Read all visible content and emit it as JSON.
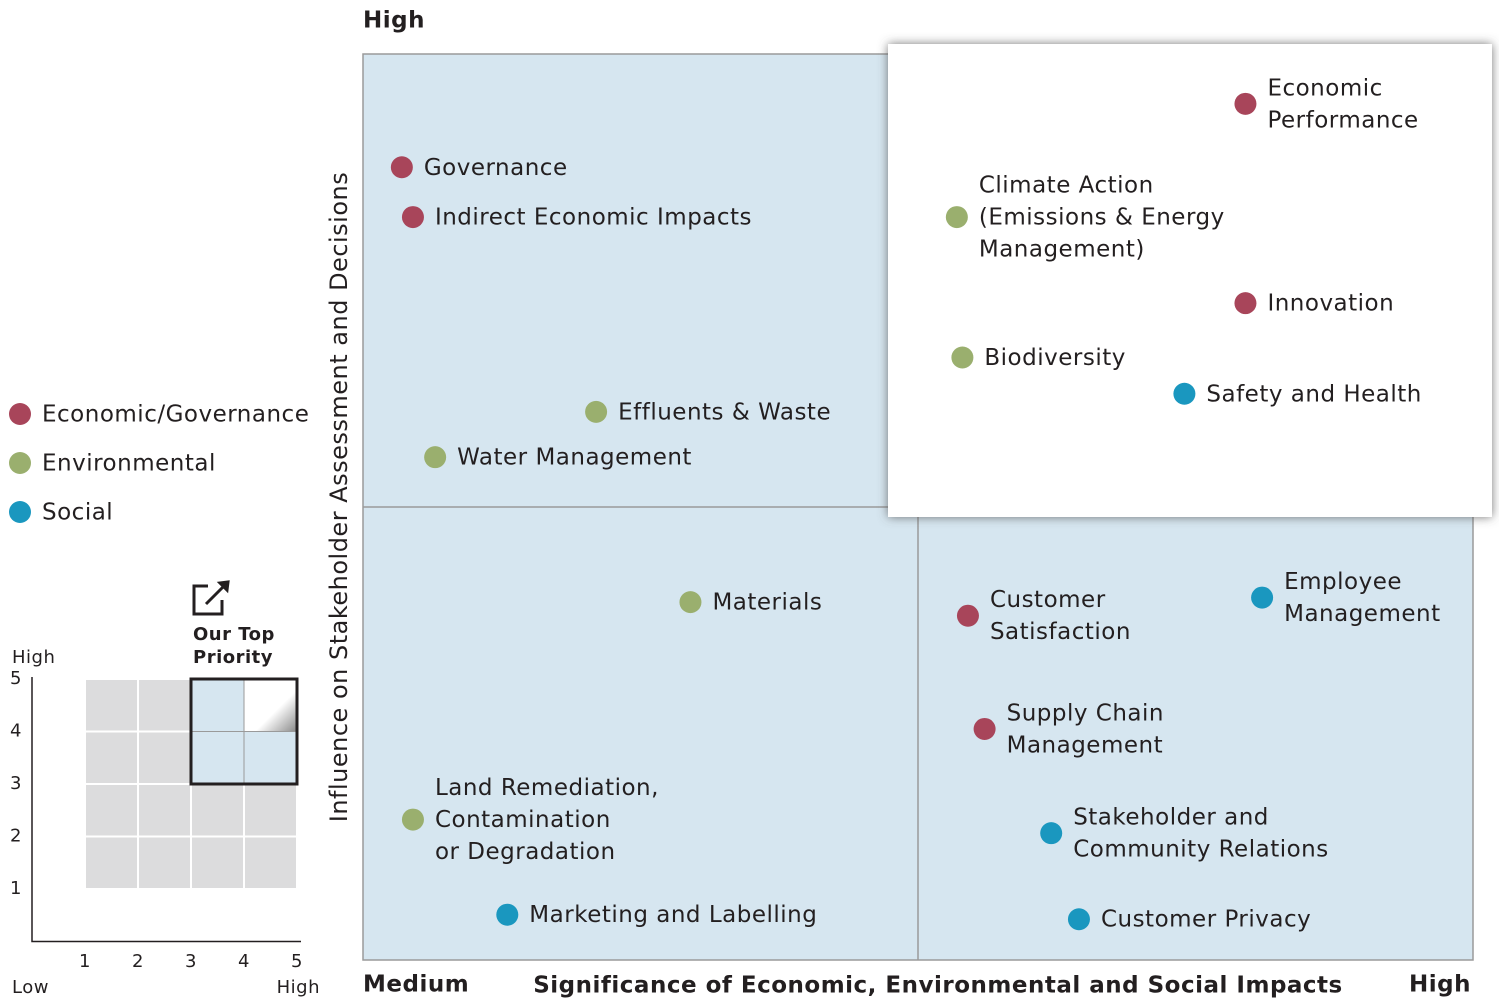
{
  "chart_data": [
    {
      "type": "scatter",
      "xlabel": "Significance of Economic, Environmental and Social Impacts",
      "ylabel": "Influence on Stakeholder Assessment and Decisions",
      "xlim": [
        3,
        5
      ],
      "ylim": [
        3,
        5
      ],
      "xticks": [
        {
          "value": 3,
          "label": "Medium"
        },
        {
          "value": 5,
          "label": "High"
        }
      ],
      "yticks": [
        {
          "value": 5,
          "label": "High"
        }
      ],
      "divider": 4,
      "series": [
        {
          "name": "Economic/Governance",
          "color": "#a8455a",
          "points": [
            {
              "label": [
                "Governance"
              ],
              "x": 3.07,
              "y": 4.75
            },
            {
              "label": [
                "Indirect Economic Impacts"
              ],
              "x": 3.09,
              "y": 4.64
            },
            {
              "label": [
                "Economic",
                "Performance"
              ],
              "x": 4.59,
              "y": 4.89
            },
            {
              "label": [
                "Innovation"
              ],
              "x": 4.59,
              "y": 4.45
            },
            {
              "label": [
                "Customer",
                "Satisfaction"
              ],
              "x": 4.09,
              "y": 3.76
            },
            {
              "label": [
                "Supply Chain",
                "Management"
              ],
              "x": 4.12,
              "y": 3.51
            }
          ]
        },
        {
          "name": "Environmental",
          "color": "#9aaf6e",
          "points": [
            {
              "label": [
                "Effluents & Waste"
              ],
              "x": 3.42,
              "y": 4.21
            },
            {
              "label": [
                "Water Management"
              ],
              "x": 3.13,
              "y": 4.11
            },
            {
              "label": [
                "Climate Action",
                "(Emissions & Energy",
                "Management)"
              ],
              "x": 4.07,
              "y": 4.64
            },
            {
              "label": [
                "Biodiversity"
              ],
              "x": 4.08,
              "y": 4.33
            },
            {
              "label": [
                "Materials"
              ],
              "x": 3.59,
              "y": 3.79
            },
            {
              "label": [
                "Land Remediation,",
                "Contamination",
                "or Degradation"
              ],
              "x": 3.09,
              "y": 3.31
            }
          ]
        },
        {
          "name": "Social",
          "color": "#1a97bf",
          "points": [
            {
              "label": [
                "Safety and Health"
              ],
              "x": 4.48,
              "y": 4.25
            },
            {
              "label": [
                "Employee",
                "Management"
              ],
              "x": 4.62,
              "y": 3.8
            },
            {
              "label": [
                "Stakeholder and",
                "Community Relations"
              ],
              "x": 4.24,
              "y": 3.28
            },
            {
              "label": [
                "Marketing and Labelling"
              ],
              "x": 3.26,
              "y": 3.1
            },
            {
              "label": [
                "Customer Privacy"
              ],
              "x": 4.29,
              "y": 3.09
            }
          ]
        }
      ]
    },
    {
      "type": "grid",
      "xlim": [
        0,
        5
      ],
      "ylim": [
        0,
        5
      ],
      "xticks": [
        1,
        2,
        3,
        4,
        5
      ],
      "yticks": [
        1,
        2,
        3,
        4,
        5
      ],
      "xtick_low": "Low",
      "xtick_high": "High",
      "ytick_high": "High",
      "highlight": [
        3,
        5
      ],
      "top_cell": [
        4,
        5
      ],
      "annotation": [
        "Our Top",
        "Priority"
      ]
    }
  ]
}
